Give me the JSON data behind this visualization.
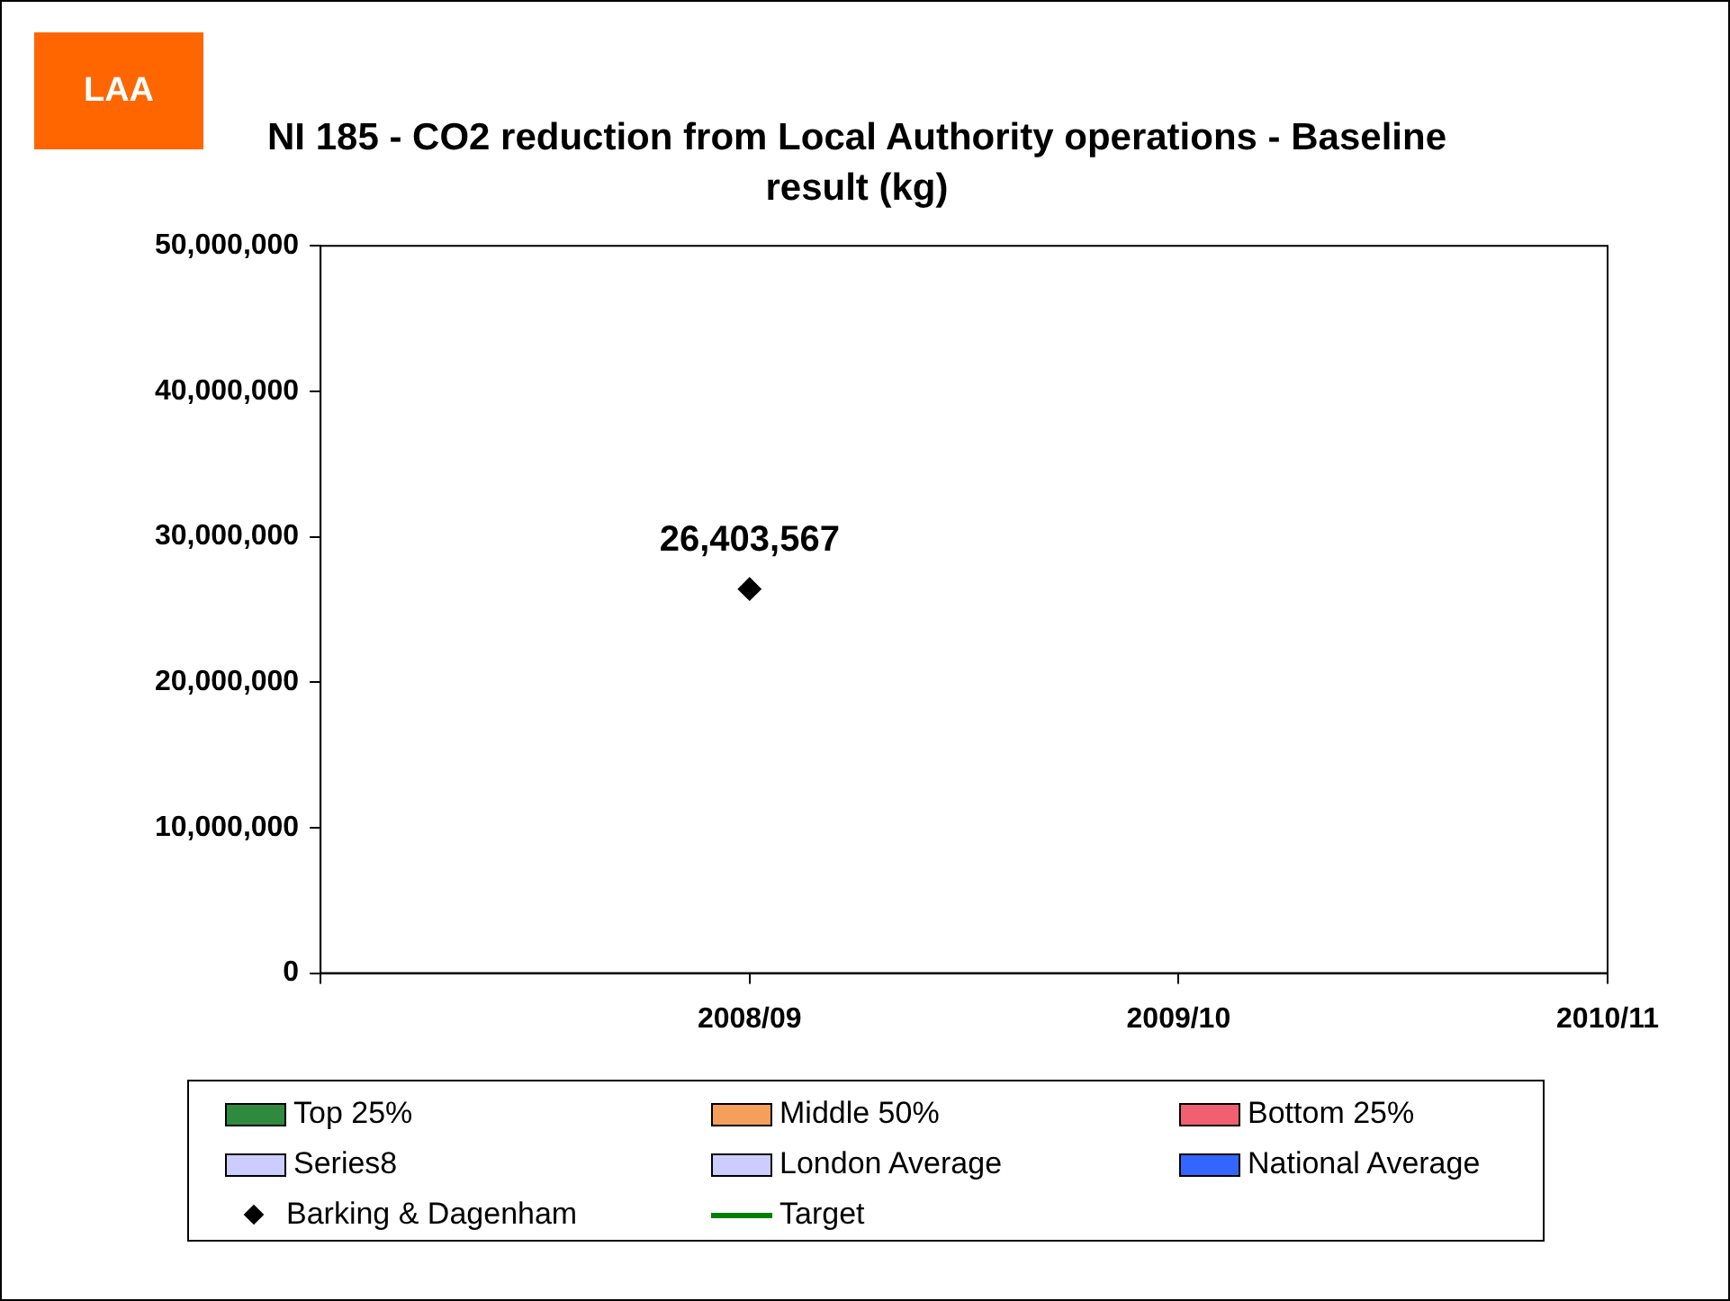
{
  "chart_data": {
    "type": "scatter",
    "title": "NI 185 - CO2 reduction from Local Authority operations - Baseline result (kg)",
    "annotations": [
      "LAA"
    ],
    "categories": [
      null,
      "2008/09",
      "2009/10",
      "2010/11"
    ],
    "series": [
      {
        "name": "Top 25%",
        "type": "bar",
        "color": "#2e8b3e",
        "values": [
          null,
          null,
          null,
          null
        ]
      },
      {
        "name": "Middle 50%",
        "type": "bar",
        "color": "#f5a05a",
        "values": [
          null,
          null,
          null,
          null
        ]
      },
      {
        "name": "Bottom 25%",
        "type": "bar",
        "color": "#f06070",
        "values": [
          null,
          null,
          null,
          null
        ]
      },
      {
        "name": "Series8",
        "type": "bar",
        "color": "#ccccff",
        "values": [
          null,
          null,
          null,
          null
        ]
      },
      {
        "name": "London Average",
        "type": "bar",
        "color": "#ccccff",
        "values": [
          null,
          null,
          null,
          null
        ]
      },
      {
        "name": "National Average",
        "type": "bar",
        "color": "#3366ff",
        "values": [
          null,
          null,
          null,
          null
        ]
      },
      {
        "name": "Barking & Dagenham",
        "color": "#000000",
        "values": [
          null,
          26403567,
          null,
          null
        ],
        "value_labels": [
          null,
          "26,403,567",
          null,
          null
        ]
      },
      {
        "name": "Target",
        "type": "line",
        "color": "#008000",
        "values": [
          null,
          null,
          null,
          null
        ]
      }
    ],
    "ylim": [
      0,
      50000000
    ],
    "yticks": [
      0,
      {
        "value": 10000000,
        "label": "10,000,000"
      },
      {
        "value": 20000000,
        "label": "20,000,000"
      },
      {
        "value": 30000000,
        "label": "30,000,000"
      },
      {
        "value": 40000000,
        "label": "40,000,000"
      },
      {
        "value": 50000000,
        "label": "50,000,000"
      }
    ],
    "grid": false,
    "legend": "bottom",
    "marker": "diamond"
  }
}
